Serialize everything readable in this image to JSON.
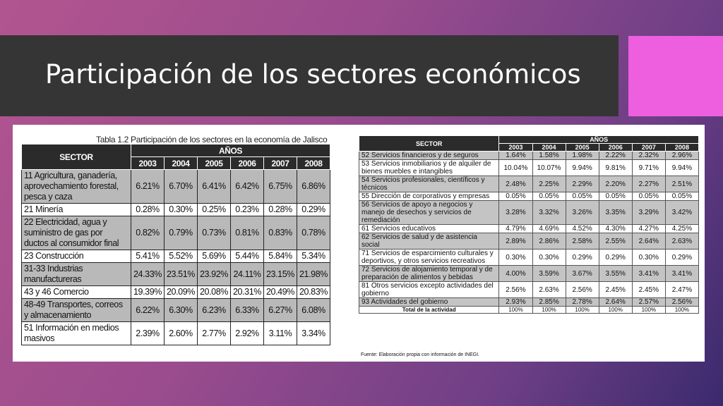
{
  "slide": {
    "title": "Participación de los sectores económicos"
  },
  "colors": {
    "title_bar": "#353535",
    "accent": "#ee5fe0",
    "header": "#2b2b2b",
    "row_gray": "#b9b9b9"
  },
  "left_table": {
    "caption": "Tabla 1.2 Participación de los sectores en la economía de Jalisco",
    "sector_header": "SECTOR",
    "years_header": "AÑOS",
    "years": [
      "2003",
      "2004",
      "2005",
      "2006",
      "2007",
      "2008"
    ],
    "rows": [
      {
        "sector": "11 Agricultura, ganadería, aprovechamiento forestal, pesca y caza",
        "values": [
          "6.21%",
          "6.70%",
          "6.41%",
          "6.42%",
          "6.75%",
          "6.86%"
        ]
      },
      {
        "sector": "21 Minería",
        "values": [
          "0.28%",
          "0.30%",
          "0.25%",
          "0.23%",
          "0.28%",
          "0.29%"
        ]
      },
      {
        "sector": "22 Electricidad, agua y suministro de gas por ductos al consumidor final",
        "values": [
          "0.82%",
          "0.79%",
          "0.73%",
          "0.81%",
          "0.83%",
          "0.78%"
        ]
      },
      {
        "sector": "23 Construcción",
        "values": [
          "5.41%",
          "5.52%",
          "5.69%",
          "5.44%",
          "5.84%",
          "5.34%"
        ]
      },
      {
        "sector": "31-33 Industrias manufactureras",
        "values": [
          "24.33%",
          "23.51%",
          "23.92%",
          "24.11%",
          "23.15%",
          "21.98%"
        ]
      },
      {
        "sector": "43 y 46 Comercio",
        "values": [
          "19.39%",
          "20.09%",
          "20.08%",
          "20.31%",
          "20.49%",
          "20.83%"
        ]
      },
      {
        "sector": "48-49 Transportes, correos y almacenamiento",
        "values": [
          "6.22%",
          "6.30%",
          "6.23%",
          "6.33%",
          "6.27%",
          "6.08%"
        ]
      },
      {
        "sector": "51 Información en medios masivos",
        "values": [
          "2.39%",
          "2.60%",
          "2.77%",
          "2.92%",
          "3.11%",
          "3.34%"
        ]
      }
    ]
  },
  "right_table": {
    "sector_header": "SECTOR",
    "years_header": "AÑOS",
    "years": [
      "2003",
      "2004",
      "2005",
      "2006",
      "2007",
      "2008"
    ],
    "rows": [
      {
        "sector": "52 Servicios financieros y de seguros",
        "values": [
          "1.64%",
          "1.58%",
          "1.98%",
          "2.22%",
          "2.32%",
          "2.96%"
        ]
      },
      {
        "sector": "53 Servicios inmobiliarios y de alquiler de bienes muebles e intangibles",
        "values": [
          "10.04%",
          "10.07%",
          "9.94%",
          "9.81%",
          "9.71%",
          "9.94%"
        ]
      },
      {
        "sector": "54 Servicios profesionales, científicos y técnicos",
        "values": [
          "2.48%",
          "2.25%",
          "2.29%",
          "2.20%",
          "2.27%",
          "2.51%"
        ]
      },
      {
        "sector": "55 Dirección de corporativos y empresas",
        "values": [
          "0.05%",
          "0.05%",
          "0.05%",
          "0.05%",
          "0.05%",
          "0.05%"
        ]
      },
      {
        "sector": "56 Servicios de apoyo a negocios y manejo de desechos y servicios de remediación",
        "values": [
          "3.28%",
          "3.32%",
          "3.26%",
          "3.35%",
          "3.29%",
          "3.42%"
        ]
      },
      {
        "sector": "61 Servicios educativos",
        "values": [
          "4.79%",
          "4.69%",
          "4.52%",
          "4.30%",
          "4.27%",
          "4.25%"
        ]
      },
      {
        "sector": "62 Servicios de salud y de asistencia social",
        "values": [
          "2.89%",
          "2.86%",
          "2.58%",
          "2.55%",
          "2.64%",
          "2.63%"
        ]
      },
      {
        "sector": "71 Servicios de esparcimiento culturales y deportivos, y otros servicios recreativos",
        "values": [
          "0.30%",
          "0.30%",
          "0.29%",
          "0.29%",
          "0.30%",
          "0.29%"
        ]
      },
      {
        "sector": "72 Servicios de alojamiento temporal y de preparación de alimentos y bebidas",
        "values": [
          "4.00%",
          "3.59%",
          "3.67%",
          "3.55%",
          "3.41%",
          "3.41%"
        ]
      },
      {
        "sector": "81 Otros servicios excepto actividades del gobierno",
        "values": [
          "2.56%",
          "2.63%",
          "2.56%",
          "2.45%",
          "2.45%",
          "2.47%"
        ]
      },
      {
        "sector": "93 Actividades del gobierno",
        "values": [
          "2.93%",
          "2.85%",
          "2.78%",
          "2.64%",
          "2.57%",
          "2.56%"
        ]
      }
    ],
    "total": {
      "label": "Total de la actividad",
      "values": [
        "100%",
        "100%",
        "100%",
        "100%",
        "100%",
        "100%"
      ]
    },
    "source": "Fuente: Elaboración propia con información de INEGI."
  }
}
